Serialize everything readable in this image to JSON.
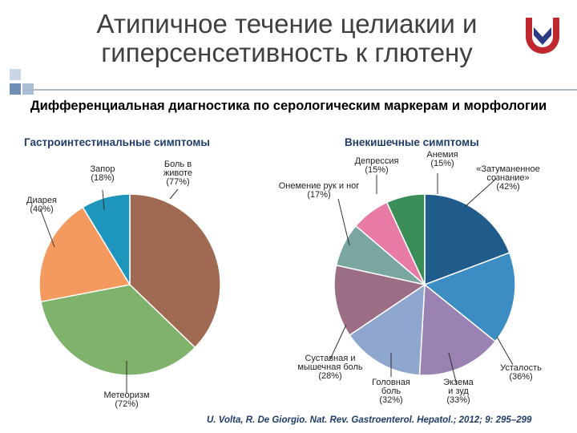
{
  "title": "Атипичное течение целиакии и гиперсенсетивность к глютену",
  "subtitle": "Дифференциальная диагностика по серологическим маркерам и морфологии",
  "citation": "U. Volta, R. De Giorgio. Nat. Rev. Gastroenterol. Hepatol.; 2012; 9: 295–299",
  "colors": {
    "accent_light": "#c8d6e6",
    "accent_dark": "#6f8fb5",
    "section_title": "#1f3d6b",
    "logo_red": "#c0282f",
    "logo_blue": "#2d3a86"
  },
  "chart_data": [
    {
      "type": "pie",
      "title": "Гастроинтестинальные симптомы",
      "slices": [
        {
          "label": "Боль в животе",
          "value": 77,
          "percent_label": "(77%)",
          "color": "#a06a52"
        },
        {
          "label": "Метеоризм",
          "value": 72,
          "percent_label": "(72%)",
          "color": "#7fb26a"
        },
        {
          "label": "Диарея",
          "value": 40,
          "percent_label": "(40%)",
          "color": "#f59a5e"
        },
        {
          "label": "Запор",
          "value": 18,
          "percent_label": "(18%)",
          "color": "#1e95bd"
        }
      ]
    },
    {
      "type": "pie",
      "title": "Внекишечные симптомы",
      "slices": [
        {
          "label": "«Затуманенное сознание»",
          "value": 42,
          "percent_label": "(42%)",
          "color": "#1f5c8c"
        },
        {
          "label": "Усталость",
          "value": 36,
          "percent_label": "(36%)",
          "color": "#3d8dc5"
        },
        {
          "label": "Экзема и зуд",
          "value": 33,
          "percent_label": "(33%)",
          "color": "#9a82b3"
        },
        {
          "label": "Головная боль",
          "value": 32,
          "percent_label": "(32%)",
          "color": "#8fa6cf"
        },
        {
          "label": "Суставная и мышечная боль",
          "value": 28,
          "percent_label": "(28%)",
          "color": "#9c6e85"
        },
        {
          "label": "Онемение рук и ног",
          "value": 17,
          "percent_label": "(17%)",
          "color": "#7aa6a2"
        },
        {
          "label": "Депрессия",
          "value": 15,
          "percent_label": "(15%)",
          "color": "#e87aa6"
        },
        {
          "label": "Анемия",
          "value": 15,
          "percent_label": "(15%)",
          "color": "#3c8e58"
        }
      ]
    }
  ]
}
